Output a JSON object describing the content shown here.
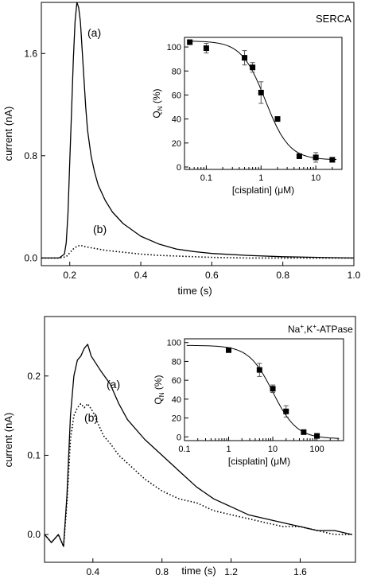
{
  "charts": [
    {
      "id": "top",
      "panel_label": "SERCA",
      "panel_label_sup": "",
      "main": {
        "xlabel": "time (s)",
        "ylabel": "current (nA)",
        "xlim": [
          0.12,
          1.0
        ],
        "ylim": [
          -0.06,
          2.0
        ],
        "xticks": [
          0.2,
          0.4,
          0.6,
          0.8,
          1.0
        ],
        "xtick_labels": [
          "0.2",
          "0.4",
          "0.6",
          "0.8",
          "1.0"
        ],
        "yticks": [
          0.0,
          0.8,
          1.6
        ],
        "ytick_labels": [
          "0.0",
          "0.8",
          "1.6"
        ],
        "series": [
          {
            "label": "(a)",
            "style": "solid",
            "x": [
              0.12,
              0.17,
              0.185,
              0.19,
              0.195,
              0.2,
              0.205,
              0.21,
              0.215,
              0.22,
              0.225,
              0.23,
              0.235,
              0.24,
              0.245,
              0.25,
              0.26,
              0.27,
              0.28,
              0.3,
              0.32,
              0.35,
              0.4,
              0.45,
              0.5,
              0.55,
              0.6,
              0.7,
              0.8,
              0.9,
              1.0
            ],
            "y": [
              0.0,
              0.0,
              0.03,
              0.12,
              0.35,
              0.75,
              1.15,
              1.55,
              1.85,
              2.0,
              1.96,
              1.85,
              1.62,
              1.4,
              1.18,
              1.0,
              0.8,
              0.67,
              0.57,
              0.45,
              0.36,
              0.27,
              0.17,
              0.11,
              0.07,
              0.05,
              0.035,
              0.02,
              0.01,
              0.005,
              0.0
            ]
          },
          {
            "label": "(b)",
            "style": "dotted",
            "x": [
              0.12,
              0.17,
              0.19,
              0.2,
              0.21,
              0.22,
              0.23,
              0.24,
              0.26,
              0.28,
              0.3,
              0.35,
              0.4,
              0.45,
              0.5,
              0.55,
              0.6,
              0.7,
              0.8,
              0.9,
              1.0
            ],
            "y": [
              0.0,
              0.0,
              0.01,
              0.04,
              0.07,
              0.09,
              0.1,
              0.09,
              0.08,
              0.07,
              0.06,
              0.045,
              0.03,
              0.02,
              0.015,
              0.01,
              0.005,
              0.0,
              0.0,
              0.0,
              0.0
            ]
          }
        ]
      },
      "inset": {
        "xlabel_prefix": "[cisplatin] (",
        "xlabel_mu": "μ",
        "xlabel_suffix": "M)",
        "ylabel_main": "Q",
        "ylabel_sub": "N",
        "ylabel_suffix": " (%)",
        "xscale": "log",
        "xlim": [
          0.04,
          30
        ],
        "ylim": [
          -2,
          108
        ],
        "xticks": [
          0.1,
          1,
          10
        ],
        "xtick_labels": [
          "0.1",
          "1",
          "10"
        ],
        "yticks": [
          0,
          20,
          40,
          60,
          80,
          100
        ],
        "ytick_labels": [
          "0",
          "20",
          "40",
          "60",
          "80",
          "100"
        ],
        "points": [
          {
            "x": 0.05,
            "y": 104,
            "err": 0
          },
          {
            "x": 0.1,
            "y": 99,
            "err": 4
          },
          {
            "x": 0.5,
            "y": 91,
            "err": 6
          },
          {
            "x": 0.7,
            "y": 83,
            "err": 4
          },
          {
            "x": 1.0,
            "y": 62,
            "err": 9
          },
          {
            "x": 2.0,
            "y": 40,
            "err": 0
          },
          {
            "x": 5.0,
            "y": 9,
            "err": 2
          },
          {
            "x": 10.0,
            "y": 8,
            "err": 4
          },
          {
            "x": 20.0,
            "y": 6,
            "err": 0
          }
        ],
        "fit": {
          "top": 105,
          "bottom": 6,
          "ic50": 1.2,
          "hill": 2.0
        }
      }
    },
    {
      "id": "bottom",
      "panel_label": "Na",
      "panel_label_sup": "+",
      "panel_label_mid": ",K",
      "panel_label_sup2": "+",
      "panel_label_tail": "-ATPase",
      "main": {
        "xlabel": "time (s)",
        "ylabel": "current (nA)",
        "xlim": [
          0.12,
          1.92
        ],
        "ylim": [
          -0.035,
          0.275
        ],
        "xticks": [
          0.4,
          0.8,
          1.2,
          1.6
        ],
        "xtick_labels": [
          "0.4",
          "0.8",
          "1.2",
          "1.6"
        ],
        "yticks": [
          0.0,
          0.1,
          0.2
        ],
        "ytick_labels": [
          "0.0",
          "0.1",
          "0.2"
        ],
        "series": [
          {
            "label": "(a)",
            "style": "solid",
            "x": [
              0.12,
              0.16,
              0.2,
              0.23,
              0.25,
              0.27,
              0.29,
              0.31,
              0.33,
              0.35,
              0.37,
              0.39,
              0.42,
              0.45,
              0.5,
              0.55,
              0.6,
              0.7,
              0.8,
              0.9,
              1.0,
              1.1,
              1.2,
              1.3,
              1.4,
              1.5,
              1.6,
              1.7,
              1.8,
              1.9
            ],
            "y": [
              0.0,
              -0.01,
              0.0,
              -0.015,
              0.05,
              0.15,
              0.2,
              0.22,
              0.225,
              0.235,
              0.24,
              0.225,
              0.215,
              0.205,
              0.19,
              0.165,
              0.145,
              0.12,
              0.1,
              0.08,
              0.06,
              0.045,
              0.035,
              0.025,
              0.02,
              0.015,
              0.01,
              0.005,
              0.005,
              0.0
            ]
          },
          {
            "label": "(b)",
            "style": "dotted",
            "x": [
              0.12,
              0.16,
              0.2,
              0.23,
              0.25,
              0.27,
              0.29,
              0.31,
              0.33,
              0.35,
              0.37,
              0.4,
              0.43,
              0.46,
              0.5,
              0.55,
              0.6,
              0.7,
              0.8,
              0.9,
              1.0,
              1.1,
              1.2,
              1.3,
              1.4,
              1.5,
              1.6,
              1.7,
              1.8,
              1.9
            ],
            "y": [
              0.0,
              -0.01,
              0.0,
              -0.015,
              0.04,
              0.12,
              0.15,
              0.16,
              0.165,
              0.16,
              0.165,
              0.155,
              0.14,
              0.125,
              0.115,
              0.1,
              0.09,
              0.07,
              0.055,
              0.045,
              0.04,
              0.03,
              0.025,
              0.02,
              0.015,
              0.01,
              0.01,
              0.005,
              0.0,
              0.0
            ]
          }
        ]
      },
      "inset": {
        "xlabel_prefix": "[cisplatin] (",
        "xlabel_mu": "μ",
        "xlabel_suffix": "M)",
        "ylabel_main": "Q",
        "ylabel_sub": "N",
        "ylabel_suffix": " (%)",
        "xscale": "log",
        "xlim": [
          0.1,
          400
        ],
        "ylim": [
          -4,
          104
        ],
        "xticks": [
          0.1,
          1,
          10,
          100
        ],
        "xtick_labels": [
          "0.1",
          "1",
          "10",
          "100"
        ],
        "yticks": [
          0,
          20,
          40,
          60,
          80,
          100
        ],
        "ytick_labels": [
          "0",
          "20",
          "40",
          "60",
          "80",
          "100"
        ],
        "points": [
          {
            "x": 1.0,
            "y": 92,
            "err": 2
          },
          {
            "x": 5.0,
            "y": 71,
            "err": 7
          },
          {
            "x": 10.0,
            "y": 51,
            "err": 4
          },
          {
            "x": 20.0,
            "y": 27,
            "err": 6
          },
          {
            "x": 50.0,
            "y": 5,
            "err": 0
          },
          {
            "x": 100.0,
            "y": 1,
            "err": 0
          }
        ],
        "fit": {
          "top": 97,
          "bottom": -2,
          "ic50": 10,
          "hill": 1.6
        }
      }
    }
  ]
}
